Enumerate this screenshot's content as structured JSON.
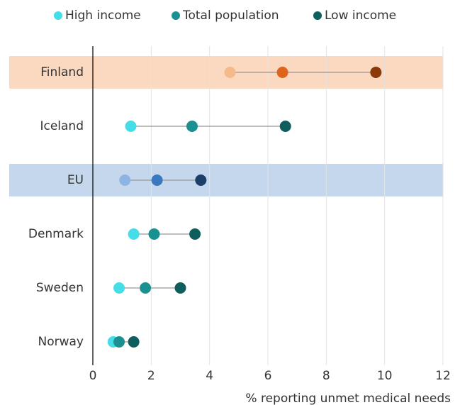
{
  "chart_data": {
    "type": "dot",
    "categories": [
      "Finland",
      "Iceland",
      "EU",
      "Denmark",
      "Sweden",
      "Norway"
    ],
    "series": [
      {
        "name": "High income",
        "color": "#45dde8",
        "values": [
          4.7,
          1.3,
          1.1,
          1.4,
          0.9,
          0.7
        ]
      },
      {
        "name": "Total population",
        "color": "#1a9190",
        "values": [
          6.5,
          3.4,
          2.2,
          2.1,
          1.8,
          0.9
        ]
      },
      {
        "name": "Low income",
        "color": "#0f5e5e",
        "values": [
          9.7,
          6.6,
          3.7,
          3.5,
          3.0,
          1.4
        ]
      }
    ],
    "highlight_colors": [
      {
        "band": "#fbd9c0",
        "dots": [
          "#f5b98a",
          "#e0651c",
          "#8a3a0a"
        ]
      },
      null,
      {
        "band": "#c5d7ec",
        "dots": [
          "#8db4e2",
          "#3a78c0",
          "#1c3f6a"
        ]
      },
      null,
      null,
      null
    ],
    "connector_color": "#999999",
    "xlabel": "% reporting unmet medical needs",
    "xlim": [
      0,
      12
    ],
    "xticks": [
      0,
      2,
      4,
      6,
      8,
      10,
      12
    ],
    "grid": true,
    "legend": "top"
  }
}
